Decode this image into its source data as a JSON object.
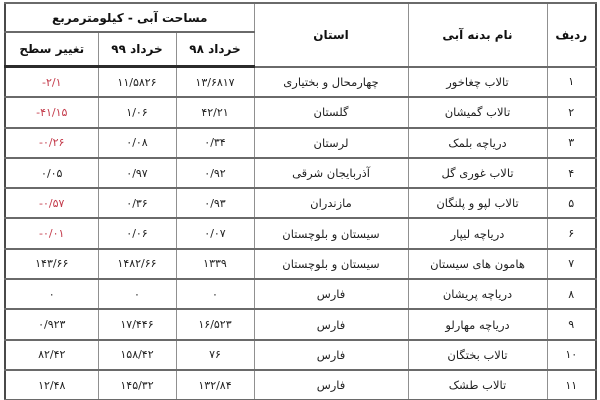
{
  "table": {
    "header": {
      "area_group_title": "مساحت آبی - کیلومترمربع",
      "row_number": "ردیف",
      "water_body": "نام بدنه آبی",
      "province": "استان",
      "khordad_98": "خرداد ۹۸",
      "khordad_99": "خرداد ۹۹",
      "change": "تغییر سطح"
    },
    "rows": [
      {
        "no": "۱",
        "name": "تالاب چغاخور",
        "province": "چهارمحال و بختیاری",
        "kh98": "۱۳/۶۸۱۷",
        "kh99": "۱۱/۵۸۲۶",
        "change": "-۲/۱"
      },
      {
        "no": "۲",
        "name": "تالاب گمیشان",
        "province": "گلستان",
        "kh98": "۴۲/۲۱",
        "kh99": "۱/۰۶",
        "change": "-۴۱/۱۵"
      },
      {
        "no": "۳",
        "name": "دریاچه بلمک",
        "province": "لرستان",
        "kh98": "۰/۳۴",
        "kh99": "۰/۰۸",
        "change": "-۰/۲۶"
      },
      {
        "no": "۴",
        "name": "تالاب غوری گل",
        "province": "آذربایجان شرقی",
        "kh98": "۰/۹۲",
        "kh99": "۰/۹۷",
        "change": "۰/۰۵"
      },
      {
        "no": "۵",
        "name": "تالاب لپو و پلنگان",
        "province": "مازندران",
        "kh98": "۰/۹۳",
        "kh99": "۰/۳۶",
        "change": "-۰/۵۷"
      },
      {
        "no": "۶",
        "name": "دریاچه لیپار",
        "province": "سیستان و بلوچستان",
        "kh98": "۰/۰۷",
        "kh99": "۰/۰۶",
        "change": "-۰/۰۱"
      },
      {
        "no": "۷",
        "name": "هامون های سیستان",
        "province": "سیستان و بلوچستان",
        "kh98": "۱۳۳۹",
        "kh99": "۱۴۸۲/۶۶",
        "change": "۱۴۳/۶۶"
      },
      {
        "no": "۸",
        "name": "دریاچه پریشان",
        "province": "فارس",
        "kh98": "۰",
        "kh99": "۰",
        "change": "۰"
      },
      {
        "no": "۹",
        "name": "دریاچه مهارلو",
        "province": "فارس",
        "kh98": "۱۶/۵۲۳",
        "kh99": "۱۷/۴۴۶",
        "change": "۰/۹۲۳"
      },
      {
        "no": "۱۰",
        "name": "تالاب بختگان",
        "province": "فارس",
        "kh98": "۷۶",
        "kh99": "۱۵۸/۴۲",
        "change": "۸۲/۴۲"
      },
      {
        "no": "۱۱",
        "name": "تالاب طشک",
        "province": "فارس",
        "kh98": "۱۳۲/۸۴",
        "kh99": "۱۴۵/۳۲",
        "change": "۱۲/۴۸"
      }
    ]
  },
  "colors": {
    "negative_value": "#c43b4b",
    "text": "#1f1f1f"
  }
}
